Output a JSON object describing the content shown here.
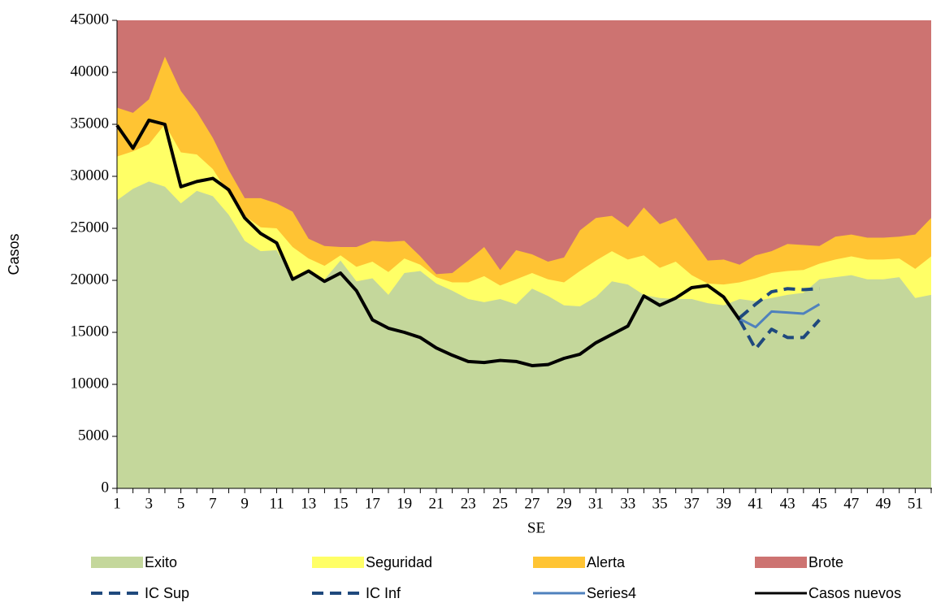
{
  "chart_data": {
    "type": "area",
    "x_label": "SE",
    "y_label": "Casos",
    "categories": [
      1,
      null,
      3,
      null,
      5,
      null,
      7,
      null,
      9,
      null,
      11,
      null,
      13,
      null,
      15,
      null,
      17,
      null,
      19,
      null,
      21,
      null,
      23,
      null,
      25,
      null,
      27,
      null,
      29,
      null,
      31,
      null,
      33,
      null,
      35,
      null,
      37,
      null,
      39,
      null,
      41,
      null,
      43,
      null,
      45,
      null,
      47,
      null,
      49,
      null,
      51,
      null
    ],
    "ylim": [
      0,
      45000
    ],
    "yticks": [
      0,
      5000,
      10000,
      15000,
      20000,
      25000,
      30000,
      35000,
      40000,
      45000
    ],
    "grid": false,
    "legend": "bottom",
    "series": [
      {
        "name": "Exito",
        "type": "area",
        "color": "#c4d79b",
        "values": [
          27700,
          28800,
          29500,
          29000,
          27400,
          28600,
          28100,
          26300,
          23800,
          22800,
          22900,
          20300,
          20700,
          20100,
          21900,
          19900,
          20200,
          18600,
          20700,
          20900,
          19700,
          19000,
          18200,
          17900,
          18200,
          17700,
          19200,
          18500,
          17600,
          17500,
          18400,
          19900,
          19600,
          18600,
          18300,
          18200,
          18200,
          17800,
          17600,
          18200,
          18000,
          18300,
          18600,
          18800,
          20100,
          20300,
          20500,
          20100,
          20100,
          20300,
          18300,
          18600
        ]
      },
      {
        "name": "Seguridad",
        "type": "area",
        "color": "#ffff66",
        "values": [
          31900,
          32400,
          33100,
          35000,
          32300,
          32100,
          30700,
          28300,
          26200,
          25100,
          25000,
          23200,
          22100,
          21400,
          22400,
          21300,
          21800,
          20800,
          22100,
          21500,
          20300,
          19800,
          19800,
          20400,
          19500,
          20100,
          20700,
          20100,
          19800,
          20900,
          21900,
          22800,
          22000,
          22400,
          21200,
          21800,
          20500,
          19700,
          19600,
          19800,
          20200,
          20700,
          20900,
          21000,
          21600,
          22000,
          22300,
          22000,
          22000,
          22100,
          21100,
          22300
        ]
      },
      {
        "name": "Alerta",
        "type": "area",
        "color": "#ffc433",
        "values": [
          36600,
          36100,
          37400,
          41500,
          38200,
          36200,
          33700,
          30600,
          27900,
          27900,
          27400,
          26600,
          24000,
          23300,
          23200,
          23200,
          23800,
          23700,
          23800,
          22300,
          20600,
          20700,
          21900,
          23200,
          21000,
          22900,
          22500,
          21800,
          22200,
          24800,
          26000,
          26200,
          25100,
          27000,
          25400,
          26000,
          24000,
          21900,
          22000,
          21500,
          22400,
          22800,
          23500,
          23400,
          23300,
          24200,
          24400,
          24100,
          24100,
          24200,
          24400,
          26000
        ]
      },
      {
        "name": "Brote",
        "type": "area",
        "color": "#cd7371",
        "values": [
          45000,
          45000,
          45000,
          45000,
          45000,
          45000,
          45000,
          45000,
          45000,
          45000,
          45000,
          45000,
          45000,
          45000,
          45000,
          45000,
          45000,
          45000,
          45000,
          45000,
          45000,
          45000,
          45000,
          45000,
          45000,
          45000,
          45000,
          45000,
          45000,
          45000,
          45000,
          45000,
          45000,
          45000,
          45000,
          45000,
          45000,
          45000,
          45000,
          45000,
          45000,
          45000,
          45000,
          45000,
          45000,
          45000,
          45000,
          45000,
          45000,
          45000,
          45000,
          45000
        ]
      },
      {
        "name": "IC Sup",
        "type": "line",
        "dashed": true,
        "color": "#1f497d",
        "values": [
          null,
          null,
          null,
          null,
          null,
          null,
          null,
          null,
          null,
          null,
          null,
          null,
          null,
          null,
          null,
          null,
          null,
          null,
          null,
          null,
          null,
          null,
          null,
          null,
          null,
          null,
          null,
          null,
          null,
          null,
          null,
          null,
          null,
          null,
          null,
          null,
          null,
          null,
          null,
          16400,
          17700,
          18900,
          19200,
          19100,
          19200,
          null,
          null,
          null,
          null,
          null,
          null,
          null
        ]
      },
      {
        "name": "IC Inf",
        "type": "line",
        "dashed": true,
        "color": "#1f497d",
        "values": [
          null,
          null,
          null,
          null,
          null,
          null,
          null,
          null,
          null,
          null,
          null,
          null,
          null,
          null,
          null,
          null,
          null,
          null,
          null,
          null,
          null,
          null,
          null,
          null,
          null,
          null,
          null,
          null,
          null,
          null,
          null,
          null,
          null,
          null,
          null,
          null,
          null,
          null,
          null,
          16200,
          13400,
          15300,
          14500,
          14500,
          16200,
          null,
          null,
          null,
          null,
          null,
          null,
          null
        ]
      },
      {
        "name": "Series4",
        "type": "line",
        "dashed": false,
        "color": "#4f81bd",
        "values": [
          null,
          null,
          null,
          null,
          null,
          null,
          null,
          null,
          null,
          null,
          null,
          null,
          null,
          null,
          null,
          null,
          null,
          null,
          null,
          null,
          null,
          null,
          null,
          null,
          null,
          null,
          null,
          null,
          null,
          null,
          null,
          null,
          null,
          null,
          null,
          null,
          null,
          null,
          null,
          16300,
          15500,
          17000,
          16900,
          16800,
          17700,
          null,
          null,
          null,
          null,
          null,
          null,
          null
        ]
      },
      {
        "name": "Casos nuevos",
        "type": "line",
        "dashed": false,
        "color": "#000000",
        "values": [
          34900,
          32700,
          35400,
          35000,
          29000,
          29500,
          29800,
          28700,
          26000,
          24500,
          23600,
          20100,
          20900,
          19900,
          20700,
          19000,
          16200,
          15400,
          15000,
          14500,
          13500,
          12800,
          12200,
          12100,
          12300,
          12200,
          11800,
          11900,
          12500,
          12900,
          14000,
          14800,
          15600,
          18500,
          17600,
          18300,
          19300,
          19500,
          18400,
          16200,
          null,
          null,
          null,
          null,
          null,
          null,
          null,
          null,
          null,
          null,
          null,
          null
        ]
      }
    ]
  }
}
